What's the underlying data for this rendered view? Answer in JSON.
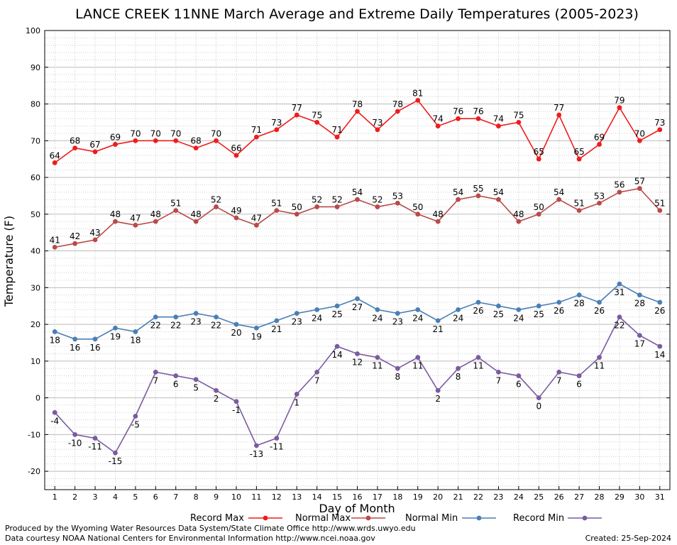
{
  "chart_data": {
    "type": "line",
    "title": "LANCE CREEK 11NNE March Average and Extreme Daily Temperatures (2005-2023)",
    "xlabel": "Day of Month",
    "ylabel": "Temperature (F)",
    "ylim": [
      -25,
      100
    ],
    "yticks": [
      -20,
      -10,
      0,
      10,
      20,
      30,
      40,
      50,
      60,
      70,
      80,
      90,
      100
    ],
    "x": [
      1,
      2,
      3,
      4,
      5,
      6,
      7,
      8,
      9,
      10,
      11,
      12,
      13,
      14,
      15,
      16,
      17,
      18,
      19,
      20,
      21,
      22,
      23,
      24,
      25,
      26,
      27,
      28,
      29,
      30,
      31
    ],
    "grid": true,
    "legend_position": "bottom",
    "series": [
      {
        "name": "Record Max",
        "color": "#ee1c1c",
        "label_pos": "above",
        "values": [
          64,
          68,
          67,
          69,
          70,
          70,
          70,
          68,
          70,
          66,
          71,
          73,
          77,
          75,
          71,
          78,
          73,
          78,
          81,
          74,
          76,
          76,
          74,
          75,
          65,
          77,
          65,
          69,
          79,
          70,
          73
        ]
      },
      {
        "name": "Normal Max",
        "color": "#b84a4a",
        "label_pos": "above",
        "values": [
          41,
          42,
          43,
          48,
          47,
          48,
          51,
          48,
          52,
          49,
          47,
          51,
          50,
          52,
          52,
          54,
          52,
          53,
          50,
          48,
          54,
          55,
          54,
          48,
          50,
          54,
          51,
          53,
          56,
          57,
          51
        ]
      },
      {
        "name": "Normal Min",
        "color": "#4a7fb5",
        "label_pos": "below",
        "values": [
          18,
          16,
          16,
          19,
          18,
          22,
          22,
          23,
          22,
          20,
          19,
          21,
          23,
          24,
          25,
          27,
          24,
          23,
          24,
          21,
          24,
          26,
          25,
          24,
          25,
          26,
          28,
          26,
          31,
          28,
          26
        ]
      },
      {
        "name": "Record Min",
        "color": "#7b5ba0",
        "label_pos": "below",
        "values": [
          -4,
          -10,
          -11,
          -15,
          -5,
          7,
          6,
          5,
          2,
          -1,
          -13,
          -11,
          1,
          7,
          14,
          12,
          11,
          8,
          11,
          2,
          8,
          11,
          7,
          6,
          0,
          7,
          6,
          11,
          22,
          17,
          14
        ]
      }
    ]
  },
  "footer": {
    "produced_by": "Produced by the Wyoming Water Resources Data System/State Climate Office http://www.wrds.uwyo.edu",
    "data_courtesy": "Data courtesy NOAA National Centers for Environmental Information http://www.ncei.noaa.gov",
    "created": "Created:  25-Sep-2024"
  }
}
